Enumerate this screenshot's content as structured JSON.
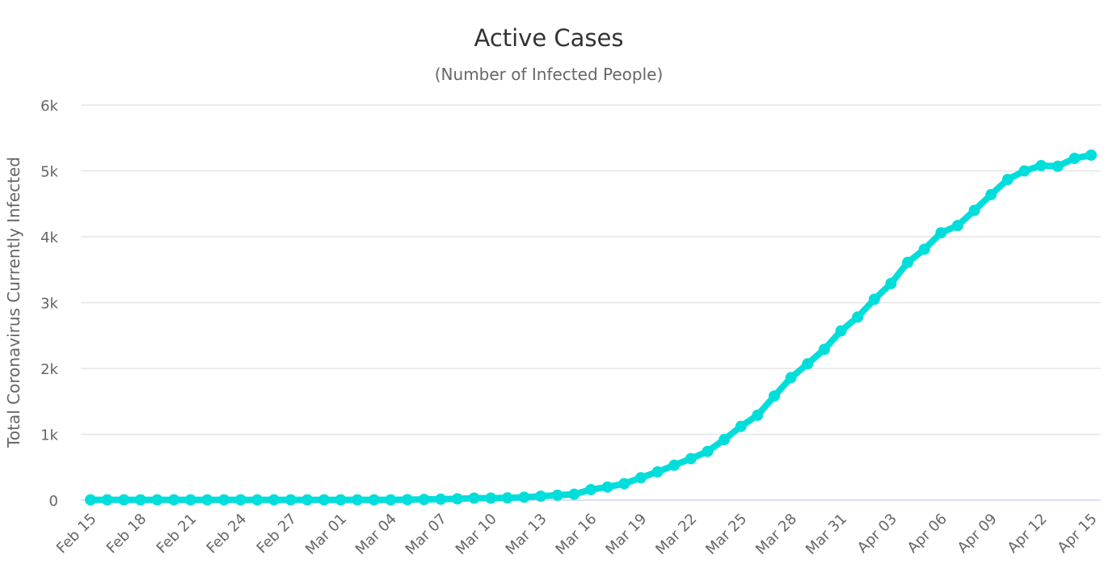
{
  "chart_data": {
    "type": "line",
    "title": "Active Cases",
    "subtitle": "(Number of Infected People)",
    "xlabel": "",
    "ylabel": "Total Coronavirus Currently Infected",
    "ylim": [
      0,
      6000
    ],
    "y_ticks": [
      0,
      1000,
      2000,
      3000,
      4000,
      5000,
      6000
    ],
    "y_tick_labels": [
      "0",
      "1k",
      "2k",
      "3k",
      "4k",
      "5k",
      "6k"
    ],
    "grid": true,
    "color": "#00dedb",
    "x": [
      "Feb 15",
      "Feb 16",
      "Feb 17",
      "Feb 18",
      "Feb 19",
      "Feb 20",
      "Feb 21",
      "Feb 22",
      "Feb 23",
      "Feb 24",
      "Feb 25",
      "Feb 26",
      "Feb 27",
      "Feb 28",
      "Feb 29",
      "Mar 01",
      "Mar 02",
      "Mar 03",
      "Mar 04",
      "Mar 05",
      "Mar 06",
      "Mar 07",
      "Mar 08",
      "Mar 09",
      "Mar 10",
      "Mar 11",
      "Mar 12",
      "Mar 13",
      "Mar 14",
      "Mar 15",
      "Mar 16",
      "Mar 17",
      "Mar 18",
      "Mar 19",
      "Mar 20",
      "Mar 21",
      "Mar 22",
      "Mar 23",
      "Mar 24",
      "Mar 25",
      "Mar 26",
      "Mar 27",
      "Mar 28",
      "Mar 29",
      "Mar 30",
      "Mar 31",
      "Apr 01",
      "Apr 02",
      "Apr 03",
      "Apr 04",
      "Apr 05",
      "Apr 06",
      "Apr 07",
      "Apr 08",
      "Apr 09",
      "Apr 10",
      "Apr 11",
      "Apr 12",
      "Apr 13",
      "Apr 14",
      "Apr 15"
    ],
    "x_tick_labels": [
      "Feb 15",
      "Feb 18",
      "Feb 21",
      "Feb 24",
      "Feb 27",
      "Mar 01",
      "Mar 04",
      "Mar 07",
      "Mar 10",
      "Mar 13",
      "Mar 16",
      "Mar 19",
      "Mar 22",
      "Mar 25",
      "Mar 28",
      "Mar 31",
      "Apr 03",
      "Apr 06",
      "Apr 09",
      "Apr 12",
      "Apr 15"
    ],
    "series": [
      {
        "name": "Currently Infected",
        "values": [
          5,
          5,
          5,
          5,
          5,
          5,
          5,
          5,
          5,
          5,
          5,
          5,
          5,
          5,
          5,
          5,
          5,
          5,
          5,
          8,
          10,
          15,
          20,
          30,
          30,
          35,
          45,
          60,
          75,
          90,
          160,
          200,
          250,
          340,
          430,
          530,
          630,
          740,
          920,
          1120,
          1290,
          1580,
          1860,
          2070,
          2290,
          2570,
          2780,
          3050,
          3290,
          3610,
          3810,
          4060,
          4170,
          4400,
          4640,
          4870,
          5000,
          5080,
          5070,
          5190,
          5240
        ]
      }
    ]
  }
}
